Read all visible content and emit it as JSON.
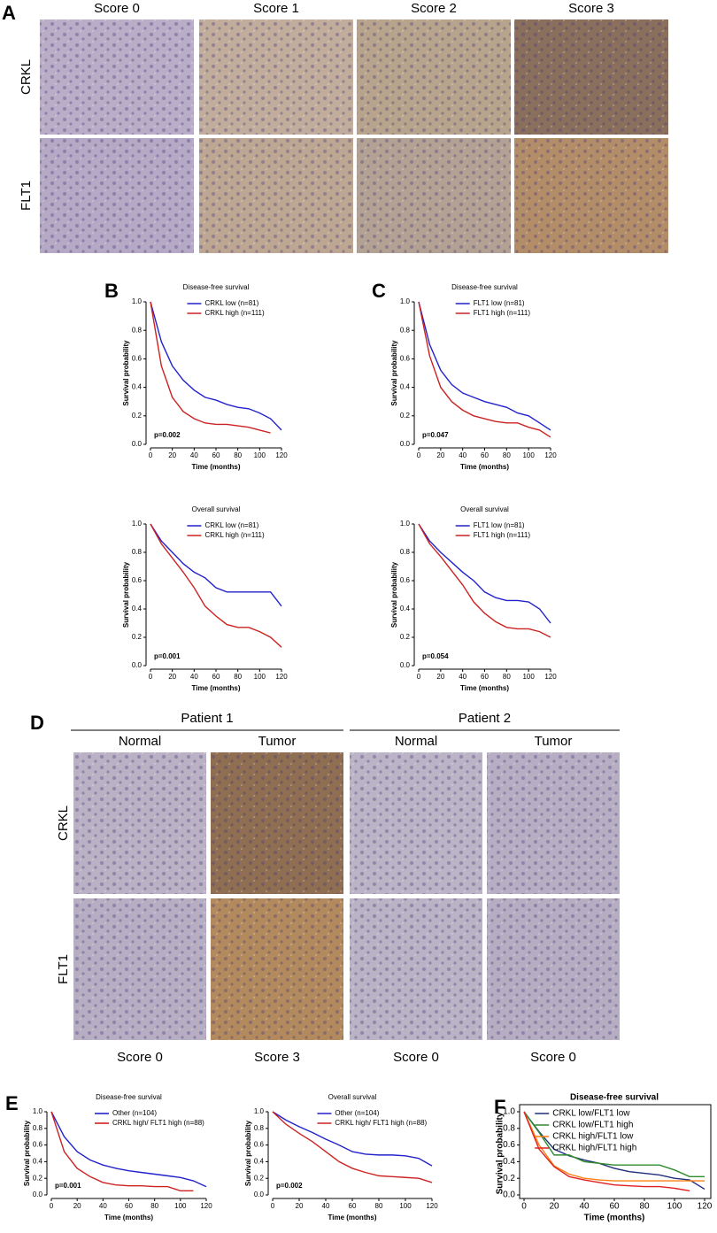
{
  "panel_labels": [
    "A",
    "B",
    "C",
    "D",
    "E",
    "F"
  ],
  "panel_a": {
    "columns": [
      "Score 0",
      "Score 1",
      "Score 2",
      "Score 3"
    ],
    "rows": [
      "CRKL",
      "FLT1"
    ]
  },
  "panel_d": {
    "patients": [
      "Patient 1",
      "Patient 2"
    ],
    "columns": [
      "Normal",
      "Tumor",
      "Normal",
      "Tumor"
    ],
    "rows": [
      "CRKL",
      "FLT1"
    ],
    "scores": [
      "Score 0",
      "Score 3",
      "Score 0",
      "Score 0"
    ]
  },
  "chart_data": [
    {
      "type": "line",
      "title": "Disease-free survival",
      "xlabel": "Time (months)",
      "ylabel": "Survival probability",
      "annotation": "p=0.002",
      "legend": "upper right",
      "x": [
        0,
        10,
        20,
        30,
        40,
        50,
        60,
        70,
        80,
        90,
        100,
        110,
        120
      ],
      "xlim": [
        0,
        120
      ],
      "ylim": [
        0,
        1
      ],
      "xticks": [
        0,
        20,
        40,
        60,
        80,
        100,
        120
      ],
      "yticks": [
        {
          "value": 0,
          "label": "0.0"
        },
        {
          "value": 0.2,
          "label": "0.2"
        },
        {
          "value": 0.4,
          "label": "0.4"
        },
        {
          "value": 0.6,
          "label": "0.6"
        },
        {
          "value": 0.8,
          "label": "0.8"
        },
        {
          "value": 1,
          "label": "1.0"
        }
      ],
      "series": [
        {
          "name": "CRKL low (n=81)",
          "color": "#2222cc",
          "values": [
            1.0,
            0.72,
            0.55,
            0.45,
            0.38,
            0.33,
            0.31,
            0.28,
            0.26,
            0.25,
            0.22,
            0.18,
            0.1
          ]
        },
        {
          "name": "CRKL high (n=111)",
          "color": "#cc2222",
          "values": [
            1.0,
            0.55,
            0.33,
            0.23,
            0.18,
            0.15,
            0.14,
            0.14,
            0.13,
            0.12,
            0.1,
            0.08,
            null
          ]
        }
      ]
    },
    {
      "type": "line",
      "title": "Disease-free survival",
      "xlabel": "Time (months)",
      "ylabel": "Survival probability",
      "annotation": "p=0.047",
      "legend": "upper right",
      "x": [
        0,
        10,
        20,
        30,
        40,
        50,
        60,
        70,
        80,
        90,
        100,
        110,
        120
      ],
      "xlim": [
        0,
        120
      ],
      "ylim": [
        0,
        1
      ],
      "xticks": [
        0,
        20,
        40,
        60,
        80,
        100,
        120
      ],
      "yticks": [
        {
          "value": 0,
          "label": "0.0"
        },
        {
          "value": 0.2,
          "label": "0.2"
        },
        {
          "value": 0.4,
          "label": "0.4"
        },
        {
          "value": 0.6,
          "label": "0.6"
        },
        {
          "value": 0.8,
          "label": "0.8"
        },
        {
          "value": 1,
          "label": "1.0"
        }
      ],
      "series": [
        {
          "name": "FLT1 low (n=81)",
          "color": "#2222cc",
          "values": [
            1.0,
            0.7,
            0.52,
            0.42,
            0.36,
            0.33,
            0.3,
            0.28,
            0.26,
            0.22,
            0.2,
            0.15,
            0.1
          ]
        },
        {
          "name": "FLT1 high (n=111)",
          "color": "#cc2222",
          "values": [
            1.0,
            0.62,
            0.4,
            0.3,
            0.24,
            0.2,
            0.18,
            0.16,
            0.15,
            0.15,
            0.12,
            0.1,
            0.05
          ]
        }
      ]
    },
    {
      "type": "line",
      "title": "Overall survival",
      "xlabel": "Time (months)",
      "ylabel": "Survival probability",
      "annotation": "p=0.001",
      "legend": "upper right",
      "x": [
        0,
        10,
        20,
        30,
        40,
        50,
        60,
        70,
        80,
        90,
        100,
        110,
        120
      ],
      "xlim": [
        0,
        120
      ],
      "ylim": [
        0,
        1
      ],
      "xticks": [
        0,
        20,
        40,
        60,
        80,
        100,
        120
      ],
      "yticks": [
        {
          "value": 0,
          "label": "0.0"
        },
        {
          "value": 0.2,
          "label": "0.2"
        },
        {
          "value": 0.4,
          "label": "0.4"
        },
        {
          "value": 0.6,
          "label": "0.6"
        },
        {
          "value": 0.8,
          "label": "0.8"
        },
        {
          "value": 1,
          "label": "1.0"
        }
      ],
      "series": [
        {
          "name": "CRKL low (n=81)",
          "color": "#2222cc",
          "values": [
            1.0,
            0.88,
            0.8,
            0.72,
            0.66,
            0.62,
            0.55,
            0.52,
            0.52,
            0.52,
            0.52,
            0.52,
            0.42
          ]
        },
        {
          "name": "CRKL high (n=111)",
          "color": "#cc2222",
          "values": [
            1.0,
            0.86,
            0.76,
            0.66,
            0.55,
            0.42,
            0.35,
            0.29,
            0.27,
            0.27,
            0.24,
            0.2,
            0.13
          ]
        }
      ]
    },
    {
      "type": "line",
      "title": "Overall survival",
      "xlabel": "Time (months)",
      "ylabel": "Survival probability",
      "annotation": "p=0.054",
      "legend": "upper right",
      "x": [
        0,
        10,
        20,
        30,
        40,
        50,
        60,
        70,
        80,
        90,
        100,
        110,
        120
      ],
      "xlim": [
        0,
        120
      ],
      "ylim": [
        0,
        1
      ],
      "xticks": [
        0,
        20,
        40,
        60,
        80,
        100,
        120
      ],
      "yticks": [
        {
          "value": 0,
          "label": "0.0"
        },
        {
          "value": 0.2,
          "label": "0.2"
        },
        {
          "value": 0.4,
          "label": "0.4"
        },
        {
          "value": 0.6,
          "label": "0.6"
        },
        {
          "value": 0.8,
          "label": "0.8"
        },
        {
          "value": 1,
          "label": "1.0"
        }
      ],
      "series": [
        {
          "name": "FLT1 low (n=81)",
          "color": "#2222cc",
          "values": [
            1.0,
            0.88,
            0.8,
            0.73,
            0.66,
            0.6,
            0.52,
            0.48,
            0.46,
            0.46,
            0.45,
            0.4,
            0.3
          ]
        },
        {
          "name": "FLT1 high (n=111)",
          "color": "#cc2222",
          "values": [
            1.0,
            0.86,
            0.77,
            0.67,
            0.57,
            0.45,
            0.37,
            0.31,
            0.27,
            0.26,
            0.26,
            0.24,
            0.2
          ]
        }
      ]
    },
    {
      "type": "line",
      "title": "Disease-free survival",
      "xlabel": "Time (months)",
      "ylabel": "Survival probability",
      "annotation": "p=0.001",
      "legend": "upper right",
      "x": [
        0,
        10,
        20,
        30,
        40,
        50,
        60,
        70,
        80,
        90,
        100,
        110,
        120
      ],
      "xlim": [
        0,
        120
      ],
      "ylim": [
        0,
        1
      ],
      "xticks": [
        0,
        20,
        40,
        60,
        80,
        100,
        120
      ],
      "yticks": [
        {
          "value": 0,
          "label": "0.0"
        },
        {
          "value": 0.2,
          "label": "0.2"
        },
        {
          "value": 0.4,
          "label": "0.4"
        },
        {
          "value": 0.6,
          "label": "0.6"
        },
        {
          "value": 0.8,
          "label": "0.8"
        },
        {
          "value": 1,
          "label": "1.0"
        }
      ],
      "series": [
        {
          "name": "Other (n=104)",
          "color": "#2222cc",
          "values": [
            1.0,
            0.7,
            0.52,
            0.42,
            0.36,
            0.32,
            0.29,
            0.27,
            0.25,
            0.23,
            0.21,
            0.17,
            0.1
          ]
        },
        {
          "name": "CRKL high/ FLT1 high (n=88)",
          "color": "#cc2222",
          "values": [
            1.0,
            0.52,
            0.32,
            0.22,
            0.15,
            0.12,
            0.11,
            0.11,
            0.1,
            0.1,
            0.05,
            0.05,
            null
          ]
        }
      ]
    },
    {
      "type": "line",
      "title": "Overall survival",
      "xlabel": "Time (months)",
      "ylabel": "Survival probability",
      "annotation": "p=0.002",
      "legend": "upper right",
      "x": [
        0,
        10,
        20,
        30,
        40,
        50,
        60,
        70,
        80,
        90,
        100,
        110,
        120
      ],
      "xlim": [
        0,
        120
      ],
      "ylim": [
        0,
        1
      ],
      "xticks": [
        0,
        20,
        40,
        60,
        80,
        100,
        120
      ],
      "yticks": [
        {
          "value": 0,
          "label": "0.0"
        },
        {
          "value": 0.2,
          "label": "0.2"
        },
        {
          "value": 0.4,
          "label": "0.4"
        },
        {
          "value": 0.6,
          "label": "0.6"
        },
        {
          "value": 0.8,
          "label": "0.8"
        },
        {
          "value": 1,
          "label": "1.0"
        }
      ],
      "series": [
        {
          "name": "Other (n=104)",
          "color": "#2222cc",
          "values": [
            1.0,
            0.9,
            0.82,
            0.75,
            0.67,
            0.6,
            0.52,
            0.49,
            0.48,
            0.48,
            0.47,
            0.44,
            0.35
          ]
        },
        {
          "name": "CRKL high/ FLT1 high (n=88)",
          "color": "#cc2222",
          "values": [
            1.0,
            0.85,
            0.74,
            0.64,
            0.52,
            0.4,
            0.32,
            0.27,
            0.23,
            0.22,
            0.21,
            0.2,
            0.15
          ]
        }
      ]
    },
    {
      "type": "line",
      "title": "Disease-free survival",
      "xlabel": "Time (months)",
      "ylabel": "Survival probability",
      "legend": "upper left",
      "frame": true,
      "x": [
        0,
        10,
        20,
        30,
        40,
        50,
        60,
        70,
        80,
        90,
        100,
        110,
        120
      ],
      "xlim": [
        0,
        120
      ],
      "ylim": [
        0,
        1
      ],
      "xticks": [
        0,
        20,
        40,
        60,
        80,
        100,
        120
      ],
      "yticks": [
        {
          "value": 0,
          "label": "0.0"
        },
        {
          "value": 0.2,
          "label": "0.2"
        },
        {
          "value": 0.4,
          "label": "0.4"
        },
        {
          "value": 0.6,
          "label": "0.6"
        },
        {
          "value": 0.8,
          "label": "0.8"
        },
        {
          "value": 1,
          "label": "1.0"
        }
      ],
      "series": [
        {
          "name": "CRKL low/FLT1 low",
          "color": "#1f2f7a",
          "values": [
            1.0,
            0.76,
            0.55,
            0.47,
            0.42,
            0.38,
            0.32,
            0.28,
            0.26,
            0.24,
            0.2,
            0.18,
            0.07
          ]
        },
        {
          "name": "CRKL low/FLT1 high",
          "color": "#2e8b2e",
          "values": [
            1.0,
            0.75,
            0.48,
            0.48,
            0.4,
            0.38,
            0.36,
            0.36,
            0.36,
            0.36,
            0.3,
            0.22,
            0.22
          ]
        },
        {
          "name": "CRKL high/FLT1 low",
          "color": "#ff7f0e",
          "values": [
            1.0,
            0.6,
            0.35,
            0.25,
            0.2,
            0.18,
            0.17,
            0.17,
            0.17,
            0.17,
            0.17,
            0.17,
            0.17
          ]
        },
        {
          "name": "CRKL high/FLT1 high",
          "color": "#e02020",
          "values": [
            1.0,
            0.55,
            0.34,
            0.22,
            0.18,
            0.15,
            0.12,
            0.11,
            0.1,
            0.1,
            0.08,
            0.05,
            null
          ]
        }
      ]
    }
  ]
}
